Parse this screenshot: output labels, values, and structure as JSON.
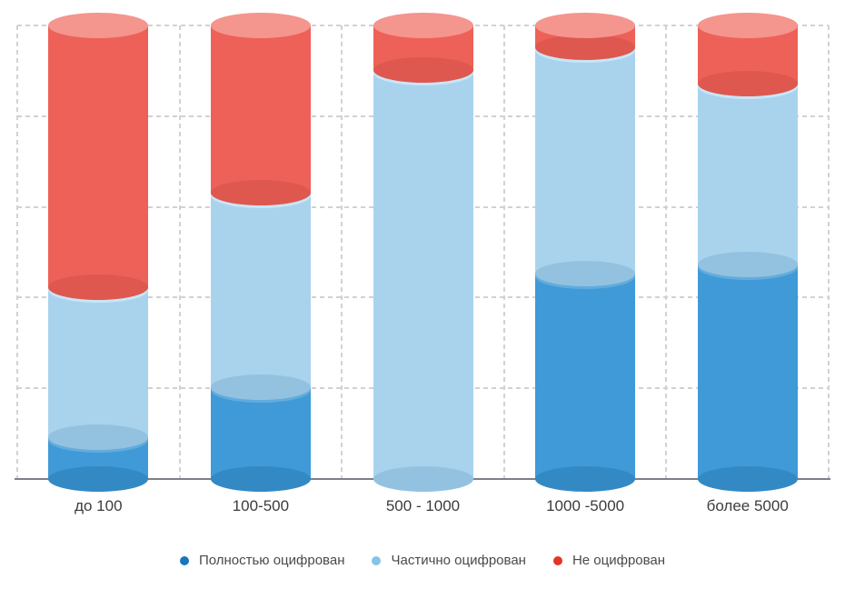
{
  "chart": {
    "background": "#ffffff",
    "axis_color": "#7c8089",
    "grid_color": "#d2d2d2",
    "label_color": "#3c3c3c",
    "legend_text_color": "#4a4a4a"
  },
  "chart_data": {
    "type": "bar",
    "subtype": "stacked-cylinder",
    "title": "",
    "xlabel": "",
    "ylabel": "",
    "unit": "percent-share",
    "ylim": [
      0,
      100
    ],
    "grid": true,
    "legend_position": "bottom",
    "categories": [
      "до 100",
      "100-500",
      "500 - 1000",
      "1000 -5000",
      "более 5000"
    ],
    "series": [
      {
        "name": "Полностью оцифрован",
        "values": [
          9,
          20,
          0,
          45,
          47
        ],
        "color": "#3f9ad7",
        "color_top": "#62acdd",
        "color_bottom": "#3389c4",
        "legend_color": "#1676c0"
      },
      {
        "name": "Частично оцифрован",
        "values": [
          33,
          43,
          90,
          50,
          40
        ],
        "color": "#a9d3ed",
        "color_top": "#c9e5f6",
        "color_bottom": "#93c2e0",
        "legend_color": "#85c3e9"
      },
      {
        "name": "Не оцифрован",
        "values": [
          58,
          37,
          10,
          5,
          13
        ],
        "color": "#ee6158",
        "color_top": "#f4958e",
        "color_bottom": "#de584f",
        "legend_color": "#e33528"
      }
    ]
  }
}
